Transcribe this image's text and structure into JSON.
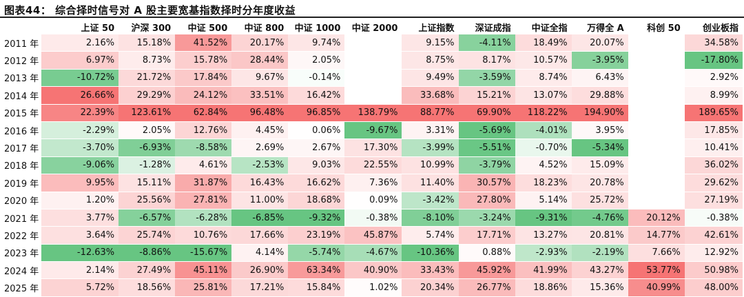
{
  "title": "图表44：  综合择时信号对 A 股主要宽基指数择时分年度收益",
  "columns": [
    "上证 50",
    "沪深 300",
    "中证 500",
    "中证 800",
    "中证 1000",
    "中证 2000",
    "上证指数",
    "深证成指",
    "中证全指",
    "万得全 A",
    "科创 50",
    "创业板指"
  ],
  "year_header": "",
  "rows": [
    {
      "year": "2011 年",
      "values": [
        "2.16%",
        "15.18%",
        "41.52%",
        "20.17%",
        "9.74%",
        "",
        "9.15%",
        "-4.11%",
        "18.49%",
        "20.07%",
        "",
        "34.58%"
      ]
    },
    {
      "year": "2012 年",
      "values": [
        "6.97%",
        "8.73%",
        "15.78%",
        "28.44%",
        "2.05%",
        "",
        "8.75%",
        "8.17%",
        "10.57%",
        "-3.95%",
        "",
        "-17.80%"
      ]
    },
    {
      "year": "2013 年",
      "values": [
        "-10.72%",
        "21.72%",
        "17.84%",
        "9.67%",
        "-0.14%",
        "",
        "9.49%",
        "-3.59%",
        "8.74%",
        "6.43%",
        "",
        "2.92%"
      ]
    },
    {
      "year": "2014 年",
      "values": [
        "26.66%",
        "29.29%",
        "24.12%",
        "33.51%",
        "16.42%",
        "",
        "33.68%",
        "15.21%",
        "13.07%",
        "29.88%",
        "",
        "8.99%"
      ]
    },
    {
      "year": "2015 年",
      "values": [
        "22.39%",
        "123.61%",
        "62.84%",
        "96.48%",
        "96.85%",
        "138.79%",
        "88.77%",
        "69.90%",
        "118.22%",
        "194.90%",
        "",
        "189.65%"
      ]
    },
    {
      "year": "2016 年",
      "values": [
        "-2.29%",
        "2.05%",
        "12.76%",
        "4.45%",
        "0.06%",
        "-9.67%",
        "3.31%",
        "-5.69%",
        "-4.01%",
        "3.95%",
        "",
        "17.85%"
      ]
    },
    {
      "year": "2017 年",
      "values": [
        "-3.70%",
        "-6.93%",
        "-8.58%",
        "2.69%",
        "2.67%",
        "17.30%",
        "-3.99%",
        "-5.51%",
        "-0.70%",
        "-5.34%",
        "",
        "10.41%"
      ]
    },
    {
      "year": "2018 年",
      "values": [
        "-9.06%",
        "-1.28%",
        "4.61%",
        "-2.53%",
        "9.03%",
        "22.55%",
        "10.99%",
        "-3.79%",
        "4.52%",
        "15.09%",
        "",
        "36.02%"
      ]
    },
    {
      "year": "2019 年",
      "values": [
        "9.95%",
        "15.11%",
        "31.87%",
        "16.43%",
        "16.62%",
        "7.36%",
        "11.40%",
        "30.57%",
        "18.23%",
        "20.78%",
        "",
        "29.62%"
      ]
    },
    {
      "year": "2020 年",
      "values": [
        "1.20%",
        "25.56%",
        "27.81%",
        "11.00%",
        "18.68%",
        "0.09%",
        "-3.42%",
        "27.80%",
        "5.14%",
        "25.72%",
        "",
        "27.19%"
      ]
    },
    {
      "year": "2021 年",
      "values": [
        "3.77%",
        "-6.57%",
        "-6.28%",
        "-6.85%",
        "-9.32%",
        "-0.38%",
        "-8.10%",
        "-3.24%",
        "-9.31%",
        "-4.76%",
        "20.12%",
        "-0.38%"
      ]
    },
    {
      "year": "2022 年",
      "values": [
        "3.64%",
        "25.74%",
        "10.76%",
        "17.66%",
        "23.19%",
        "45.87%",
        "5.74%",
        "17.71%",
        "13.27%",
        "20.81%",
        "14.77%",
        "42.61%"
      ]
    },
    {
      "year": "2023 年",
      "values": [
        "-12.63%",
        "-8.86%",
        "-15.67%",
        "4.14%",
        "-5.74%",
        "-4.67%",
        "-10.36%",
        "0.88%",
        "-2.93%",
        "-2.19%",
        "7.66%",
        "12.92%"
      ]
    },
    {
      "year": "2024 年",
      "values": [
        "2.14%",
        "27.49%",
        "45.11%",
        "26.90%",
        "63.34%",
        "40.90%",
        "33.43%",
        "45.92%",
        "41.99%",
        "43.27%",
        "53.77%",
        "50.98%"
      ]
    },
    {
      "year": "2025 年",
      "values": [
        "5.72%",
        "18.56%",
        "25.81%",
        "17.21%",
        "15.84%",
        "1.02%",
        "20.34%",
        "26.77%",
        "18.86%",
        "15.36%",
        "40.99%",
        "48.00%"
      ]
    }
  ],
  "colors": {
    "positive": "#f45b5b",
    "negative": "#4cbb6c",
    "neutral": "#ffffff"
  }
}
